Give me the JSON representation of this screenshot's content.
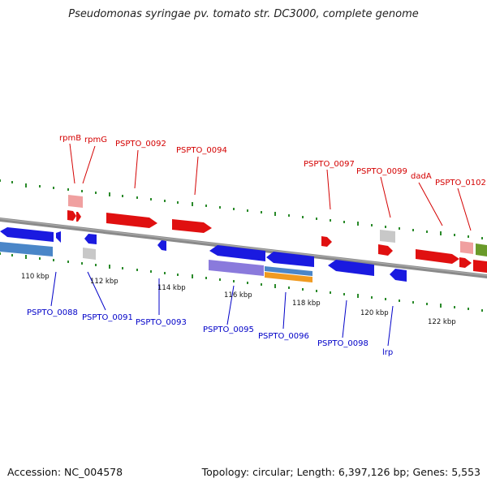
{
  "title": "Pseudomonas syringae pv. tomato str. DC3000, complete genome",
  "footer": {
    "accession": "Accession: NC_004578",
    "summary": "Topology: circular; Length: 6,397,126 bp; Genes: 5,553"
  },
  "colors": {
    "forward_gene": "#e01010",
    "reverse_gene": "#1a1ae0",
    "forward_label": "#d40000",
    "reverse_label": "#0000c8",
    "backbone": "#8a8a8a",
    "tick": "#2a8a2a",
    "rna_forward": "#f0a0a0",
    "neutral": "#c8c8c8",
    "reverse_blue2": "#4a86c8",
    "purple": "#8a7adc",
    "orange": "#f09a20",
    "olive": "#6a9a2a"
  },
  "scale_labels": [
    "110 kbp",
    "112 kbp",
    "114 kbp",
    "116 kbp",
    "118 kbp",
    "120 kbp",
    "122 kbp"
  ],
  "forward_labels": [
    "rpmB",
    "rpmG",
    "PSPTO_0092",
    "PSPTO_0094",
    "PSPTO_0097",
    "PSPTO_0099",
    "dadA",
    "PSPTO_0102"
  ],
  "reverse_labels": [
    "PSPTO_0088",
    "PSPTO_0091",
    "PSPTO_0093",
    "PSPTO_0095",
    "PSPTO_0096",
    "PSPTO_0098",
    "lrp"
  ]
}
